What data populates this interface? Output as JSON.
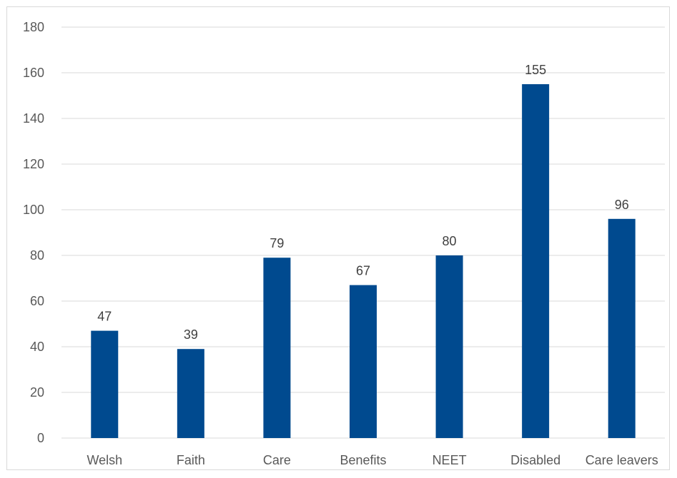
{
  "chart_data": {
    "type": "bar",
    "categories": [
      "Welsh",
      "Faith",
      "Care",
      "Benefits",
      "NEET",
      "Disabled",
      "Care leavers"
    ],
    "values": [
      47,
      39,
      79,
      67,
      80,
      155,
      96
    ],
    "data_labels": [
      "47",
      "39",
      "79",
      "67",
      "80",
      "155",
      "96"
    ],
    "title": "",
    "xlabel": "",
    "ylabel": "",
    "ylim": [
      0,
      180
    ],
    "yticks": [
      0,
      20,
      40,
      60,
      80,
      100,
      120,
      140,
      160,
      180
    ],
    "ytick_labels": [
      "0",
      "20",
      "40",
      "60",
      "80",
      "100",
      "120",
      "140",
      "160",
      "180"
    ],
    "grid": true,
    "legend": "none",
    "bar_color": "#004a8f",
    "gridline_color": "#d9d9d9",
    "text_color": "#595959"
  }
}
